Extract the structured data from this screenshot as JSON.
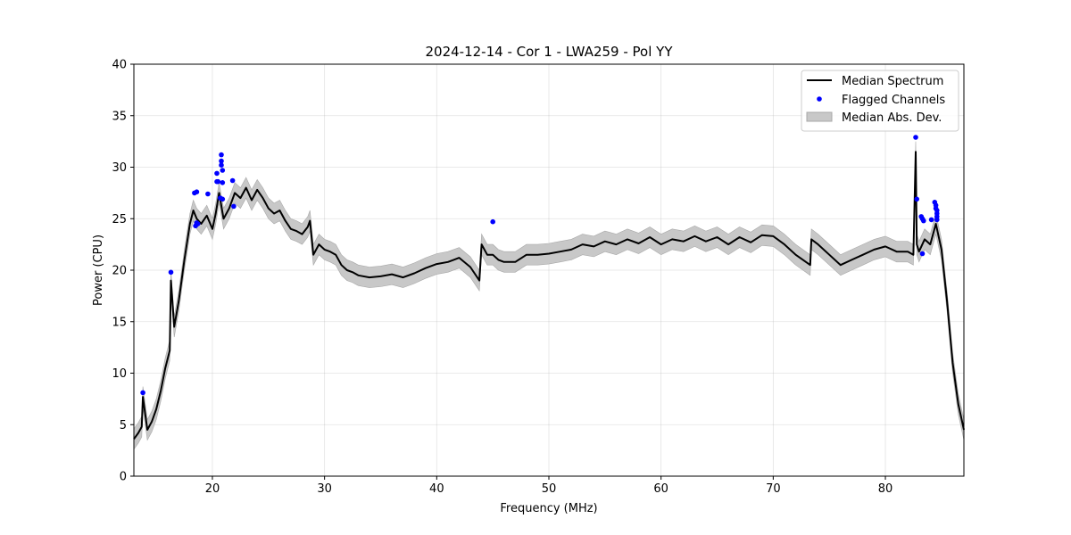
{
  "chart_data": {
    "type": "line",
    "title": "2024-12-14 - Cor 1 - LWA259 - Pol YY",
    "xlabel": "Frequency (MHz)",
    "ylabel": "Power (CPU)",
    "xlim": [
      13,
      87
    ],
    "ylim": [
      0,
      40
    ],
    "xticks": [
      20,
      30,
      40,
      50,
      60,
      70,
      80
    ],
    "yticks": [
      0,
      5,
      10,
      15,
      20,
      25,
      30,
      35,
      40
    ],
    "grid": true,
    "legend_position": "top-right",
    "colors": {
      "median": "#000000",
      "flagged": "#0000ff",
      "mad": "#bfbfbf"
    },
    "legend": [
      "Median Spectrum",
      "Flagged Channels",
      "Median Abs. Dev."
    ],
    "series": [
      {
        "name": "Median Spectrum",
        "kind": "line",
        "x": [
          13.0,
          13.4,
          13.7,
          13.8,
          14.2,
          14.6,
          15.0,
          15.4,
          15.8,
          16.2,
          16.3,
          16.6,
          17.0,
          17.5,
          18.0,
          18.3,
          18.6,
          19.0,
          19.5,
          20.0,
          20.3,
          20.6,
          21.0,
          21.5,
          22.0,
          22.5,
          23.0,
          23.5,
          24.0,
          24.5,
          25.0,
          25.5,
          26.0,
          26.5,
          27.0,
          27.5,
          28.0,
          28.5,
          28.7,
          29.0,
          29.5,
          30.0,
          30.5,
          31.0,
          31.5,
          32.0,
          32.5,
          33.0,
          34.0,
          35.0,
          36.0,
          37.0,
          38.0,
          39.0,
          40.0,
          41.0,
          42.0,
          43.0,
          43.8,
          44.0,
          44.5,
          45.0,
          45.5,
          46.0,
          47.0,
          48.0,
          49.0,
          50.0,
          51.0,
          52.0,
          53.0,
          54.0,
          55.0,
          56.0,
          57.0,
          58.0,
          59.0,
          60.0,
          61.0,
          62.0,
          63.0,
          64.0,
          65.0,
          66.0,
          67.0,
          68.0,
          69.0,
          70.0,
          71.0,
          72.0,
          73.3,
          73.4,
          74.0,
          75.0,
          76.0,
          77.0,
          78.0,
          79.0,
          80.0,
          81.0,
          82.0,
          82.5,
          82.7,
          82.8,
          83.0,
          83.5,
          84.0,
          84.5,
          85.0,
          85.5,
          86.0,
          86.5,
          87.0
        ],
        "y": [
          3.6,
          4.2,
          4.8,
          7.7,
          4.5,
          5.3,
          6.5,
          8.3,
          10.5,
          12.2,
          19.0,
          14.5,
          17.0,
          21.0,
          24.5,
          25.8,
          25.0,
          24.5,
          25.3,
          24.0,
          25.5,
          27.5,
          25.0,
          26.0,
          27.5,
          27.0,
          28.0,
          26.8,
          27.8,
          27.0,
          26.0,
          25.5,
          25.8,
          24.8,
          24.0,
          23.8,
          23.5,
          24.2,
          24.8,
          21.5,
          22.5,
          22.0,
          21.8,
          21.5,
          20.5,
          20.0,
          19.8,
          19.5,
          19.3,
          19.4,
          19.6,
          19.3,
          19.7,
          20.2,
          20.6,
          20.8,
          21.2,
          20.3,
          19.0,
          22.5,
          21.5,
          21.5,
          21.0,
          20.8,
          20.8,
          21.5,
          21.5,
          21.6,
          21.8,
          22.0,
          22.5,
          22.3,
          22.8,
          22.5,
          23.0,
          22.6,
          23.2,
          22.5,
          23.0,
          22.8,
          23.3,
          22.8,
          23.2,
          22.5,
          23.2,
          22.7,
          23.4,
          23.3,
          22.5,
          21.5,
          20.5,
          23.0,
          22.5,
          21.5,
          20.5,
          21.0,
          21.5,
          22.0,
          22.3,
          21.8,
          21.8,
          21.5,
          31.5,
          22.5,
          21.8,
          23.0,
          22.5,
          24.5,
          22.0,
          17.0,
          11.0,
          7.0,
          4.5
        ],
        "spread": 1.0
      },
      {
        "name": "Flagged Channels",
        "kind": "scatter",
        "x": [
          13.8,
          16.3,
          18.4,
          18.5,
          18.6,
          18.6,
          18.7,
          19.6,
          20.4,
          20.4,
          20.5,
          20.7,
          20.8,
          20.8,
          20.8,
          20.9,
          20.9,
          20.9,
          21.8,
          21.9,
          45.0,
          82.7,
          82.8,
          83.2,
          83.3,
          83.3,
          83.4,
          84.1,
          84.4,
          84.5,
          84.5,
          84.6,
          84.6,
          84.6,
          84.6
        ],
        "y": [
          8.1,
          19.8,
          27.5,
          24.3,
          24.6,
          27.6,
          24.5,
          27.4,
          29.4,
          28.6,
          28.6,
          27.0,
          30.6,
          30.2,
          31.2,
          29.7,
          28.5,
          26.9,
          28.7,
          26.2,
          24.7,
          32.9,
          26.9,
          25.2,
          25.0,
          21.6,
          24.8,
          24.9,
          26.6,
          26.3,
          26.0,
          25.8,
          25.5,
          25.2,
          24.9
        ]
      }
    ]
  }
}
